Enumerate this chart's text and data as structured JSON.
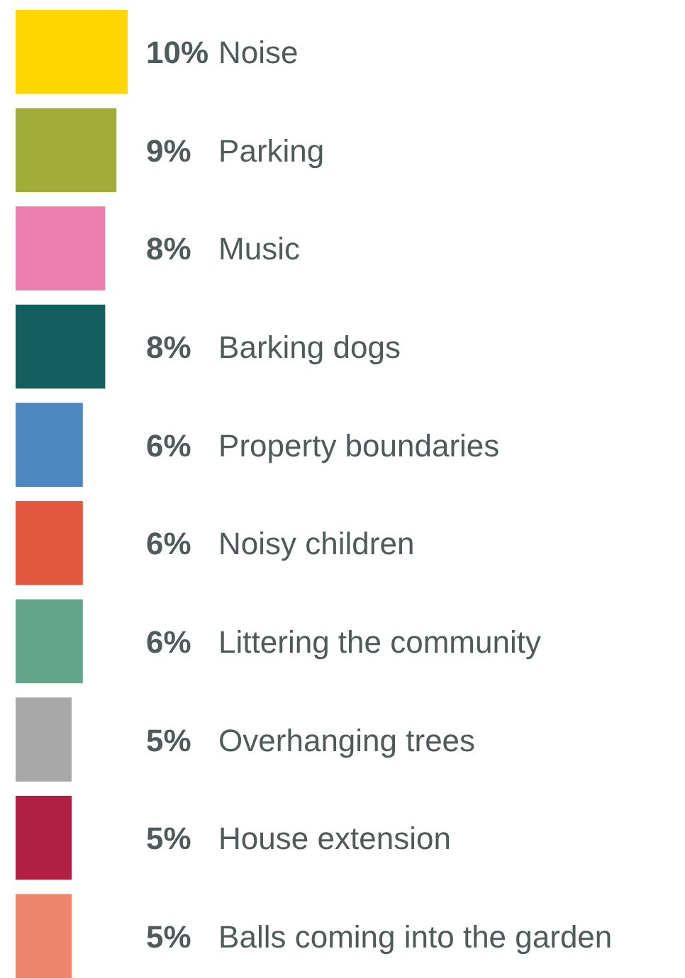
{
  "chart_data": {
    "type": "bar",
    "orientation": "horizontal",
    "categories": [
      "Noise",
      "Parking",
      "Music",
      "Barking dogs",
      "Property boundaries",
      "Noisy children",
      "Littering the community",
      "Overhanging trees",
      "House extension",
      "Balls coming into the garden"
    ],
    "values": [
      10,
      9,
      8,
      8,
      6,
      6,
      6,
      5,
      5,
      5
    ],
    "value_labels": [
      "10%",
      "9%",
      "8%",
      "8%",
      "6%",
      "6%",
      "6%",
      "5%",
      "5%",
      "5%"
    ],
    "colors": [
      "#fed700",
      "#a0ad38",
      "#eb7fae",
      "#135f5f",
      "#4f87c0",
      "#e2573e",
      "#62a58b",
      "#a8a8a8",
      "#b02045",
      "#f0856d"
    ]
  }
}
